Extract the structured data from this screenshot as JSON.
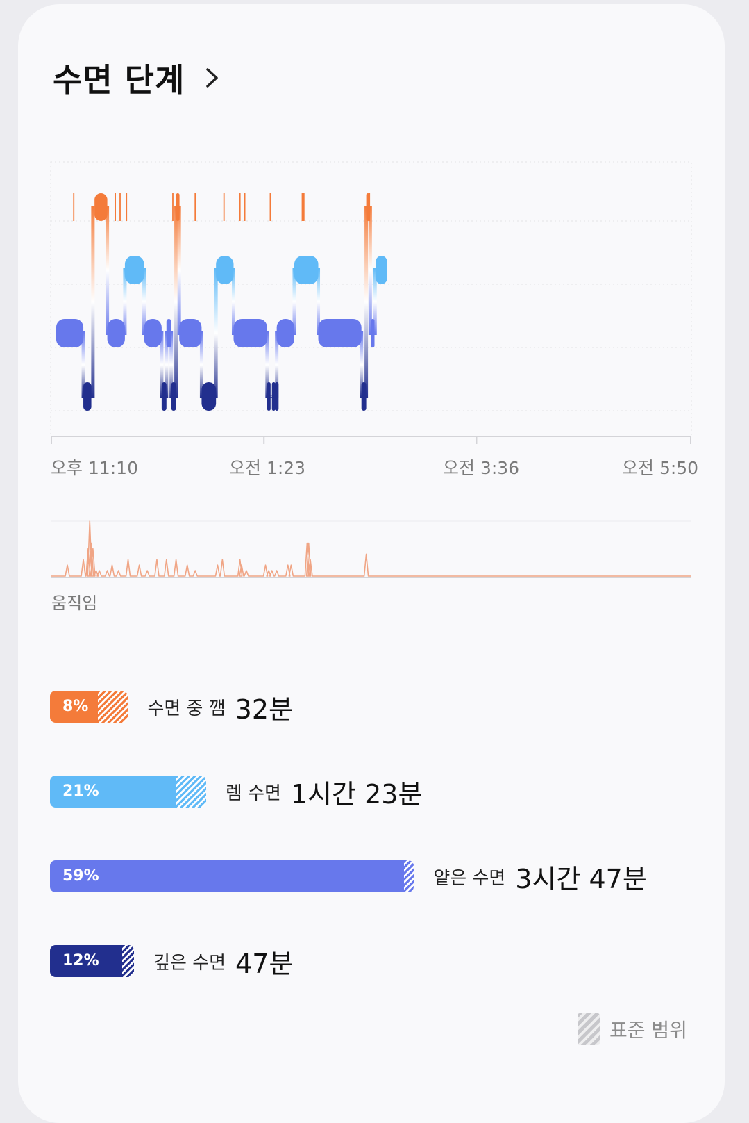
{
  "header": {
    "title": "수면 단계"
  },
  "colors": {
    "awake": "#f47b3a",
    "rem": "#60baf7",
    "light": "#6778ec",
    "deep": "#222f8e",
    "movement": "#f0a585",
    "standard_range_swatch": "#c7c7cb"
  },
  "time_axis": {
    "labels": [
      "오후 11:10",
      "오전 1:23",
      "오전 3:36",
      "오전 5:50"
    ]
  },
  "chart_data": {
    "type": "timeline",
    "start": "23:10",
    "end": "05:50",
    "stages": [
      "awake",
      "rem",
      "light",
      "deep"
    ],
    "segments": [
      {
        "stage": "light",
        "start": "23:13",
        "end": "23:30"
      },
      {
        "stage": "deep",
        "start": "23:30",
        "end": "23:35"
      },
      {
        "stage": "awake",
        "start": "23:37",
        "end": "23:45"
      },
      {
        "stage": "light",
        "start": "23:45",
        "end": "23:56"
      },
      {
        "stage": "rem",
        "start": "23:56",
        "end": "00:08"
      },
      {
        "stage": "light",
        "start": "00:08",
        "end": "00:19"
      },
      {
        "stage": "deep",
        "start": "00:19",
        "end": "00:22"
      },
      {
        "stage": "light",
        "start": "00:22",
        "end": "00:25"
      },
      {
        "stage": "deep",
        "start": "00:25",
        "end": "00:28"
      },
      {
        "stage": "awake",
        "start": "00:28",
        "end": "00:30"
      },
      {
        "stage": "light",
        "start": "00:30",
        "end": "00:44"
      },
      {
        "stage": "deep",
        "start": "00:44",
        "end": "00:53"
      },
      {
        "stage": "rem",
        "start": "00:53",
        "end": "01:04"
      },
      {
        "stage": "light",
        "start": "01:04",
        "end": "01:25"
      },
      {
        "stage": "deep",
        "start": "01:25",
        "end": "01:27"
      },
      {
        "stage": "deep",
        "start": "01:28",
        "end": "01:29"
      },
      {
        "stage": "deep",
        "start": "01:30",
        "end": "01:31"
      },
      {
        "stage": "light",
        "start": "01:31",
        "end": "01:42"
      },
      {
        "stage": "rem",
        "start": "01:42",
        "end": "01:57"
      },
      {
        "stage": "light",
        "start": "01:57",
        "end": "02:24"
      },
      {
        "stage": "deep",
        "start": "02:24",
        "end": "02:27"
      },
      {
        "stage": "awake",
        "start": "02:27",
        "end": "02:29"
      },
      {
        "stage": "light",
        "start": "02:30",
        "end": "02:32"
      },
      {
        "stage": "rem",
        "start": "02:33",
        "end": "02:40"
      }
    ],
    "awake_ticks": [
      "23:24",
      "23:50",
      "23:53",
      "23:57",
      "00:26",
      "00:40",
      "00:58",
      "01:08",
      "01:11",
      "01:27",
      "01:47",
      "01:48",
      "02:29"
    ],
    "movement": {
      "label": "움직임",
      "times": [
        "23:10",
        "23:20",
        "23:30",
        "23:33",
        "23:34",
        "23:35",
        "23:36",
        "23:38",
        "23:40",
        "23:45",
        "23:48",
        "23:52",
        "23:58",
        "00:05",
        "00:10",
        "00:16",
        "00:22",
        "00:28",
        "00:35",
        "00:40",
        "00:54",
        "00:57",
        "01:08",
        "01:09",
        "01:12",
        "01:24",
        "01:26",
        "01:28",
        "01:31",
        "01:38",
        "01:40",
        "01:50",
        "01:51",
        "01:52",
        "02:27",
        "02:30"
      ],
      "values": [
        0,
        0.2,
        0.3,
        0.5,
        1.0,
        0.6,
        0.5,
        0.1,
        0.1,
        0.1,
        0.2,
        0.1,
        0.3,
        0.2,
        0.1,
        0.3,
        0.3,
        0.3,
        0.2,
        0.1,
        0.2,
        0.3,
        0.3,
        0.2,
        0.1,
        0.2,
        0.1,
        0.1,
        0.1,
        0.2,
        0.2,
        0.6,
        0.6,
        0.3,
        0.4,
        0
      ]
    }
  },
  "stats": [
    {
      "key": "awake",
      "label": "수면 중 깸",
      "percent": "8%",
      "percent_value": 8,
      "value": "32분",
      "range_end_pct": 13
    },
    {
      "key": "rem",
      "label": "렘 수면",
      "percent": "21%",
      "percent_value": 21,
      "value": "1시간 23분",
      "range_end_pct": 26
    },
    {
      "key": "light",
      "label": "얕은 수면",
      "percent": "59%",
      "percent_value": 59,
      "value": "3시간 47분",
      "range_end_pct": 60
    },
    {
      "key": "deep",
      "label": "깊은 수면",
      "percent": "12%",
      "percent_value": 12,
      "value": "47분",
      "range_end_pct": 14
    }
  ],
  "legend": {
    "label": "표준 범위"
  }
}
